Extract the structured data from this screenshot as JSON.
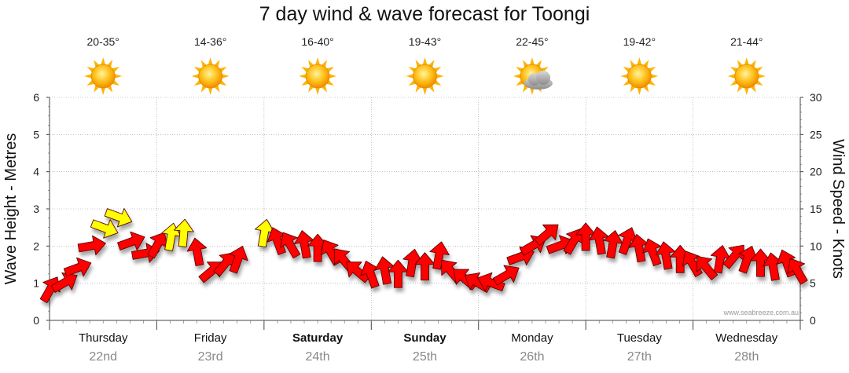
{
  "title": "7 day wind & wave forecast for Toongi",
  "credit": "www.seabreeze.com.au",
  "colors": {
    "wind": "#ff0000",
    "wind_light": "#ffff00",
    "sun": "#ffb300",
    "cloud": "#a8a8a8",
    "grid": "#999999"
  },
  "days": [
    {
      "name": "Thursday",
      "date": "22nd",
      "temp": "20-35°",
      "icon": "sun-icon",
      "bold": false
    },
    {
      "name": "Friday",
      "date": "23rd",
      "temp": "14-36°",
      "icon": "sun-icon",
      "bold": false
    },
    {
      "name": "Saturday",
      "date": "24th",
      "temp": "16-40°",
      "icon": "sun-icon",
      "bold": true
    },
    {
      "name": "Sunday",
      "date": "25th",
      "temp": "19-43°",
      "icon": "sun-icon",
      "bold": true
    },
    {
      "name": "Monday",
      "date": "26th",
      "temp": "22-45°",
      "icon": "sun-cloud-icon",
      "bold": false
    },
    {
      "name": "Tuesday",
      "date": "27th",
      "temp": "19-42°",
      "icon": "sun-icon",
      "bold": false
    },
    {
      "name": "Wednesday",
      "date": "28th",
      "temp": "21-44°",
      "icon": "sun-icon",
      "bold": false
    }
  ],
  "chart_data": {
    "type": "scatter",
    "title": "7 day wind & wave forecast for Toongi",
    "left_axis": {
      "label": "Wave Height - Metres",
      "range": [
        0,
        6
      ],
      "ticks": [
        "0",
        "1",
        "2",
        "3",
        "4",
        "5",
        "6"
      ]
    },
    "right_axis": {
      "label": "Wind Speed - Knots",
      "range": [
        0,
        30
      ],
      "ticks": [
        "0",
        "5",
        "10",
        "15",
        "20",
        "25",
        "30"
      ]
    },
    "x_categories": [
      "Thursday 22nd",
      "Friday 23rd",
      "Saturday 24th",
      "Sunday 25th",
      "Monday 26th",
      "Tuesday 27th",
      "Wednesday 28th"
    ],
    "grid": true,
    "series": [
      {
        "marker": "wind arrow",
        "points": [
          {
            "t": 0.0,
            "knots": 4.0,
            "dir": 120,
            "light": false
          },
          {
            "t": 0.13,
            "knots": 5.0,
            "dir": 150,
            "light": false
          },
          {
            "t": 0.25,
            "knots": 7.0,
            "dir": 160,
            "light": false
          },
          {
            "t": 0.38,
            "knots": 10.0,
            "dir": 170,
            "light": false
          },
          {
            "t": 0.5,
            "knots": 12.5,
            "dir": 200,
            "light": true
          },
          {
            "t": 0.63,
            "knots": 14.0,
            "dir": 200,
            "light": true
          },
          {
            "t": 0.75,
            "knots": 10.5,
            "dir": 160,
            "light": false
          },
          {
            "t": 0.88,
            "knots": 9.0,
            "dir": 170,
            "light": false
          },
          {
            "t": 1.0,
            "knots": 10.0,
            "dir": 120,
            "light": false
          },
          {
            "t": 1.13,
            "knots": 11.0,
            "dir": 100,
            "light": true
          },
          {
            "t": 1.25,
            "knots": 11.5,
            "dir": 95,
            "light": true
          },
          {
            "t": 1.38,
            "knots": 9.0,
            "dir": 80,
            "light": false
          },
          {
            "t": 1.5,
            "knots": 6.5,
            "dir": 140,
            "light": false
          },
          {
            "t": 1.63,
            "knots": 7.5,
            "dir": 130,
            "light": false
          },
          {
            "t": 1.75,
            "knots": 8.0,
            "dir": 110,
            "light": false
          },
          {
            "t": 2.0,
            "knots": 11.5,
            "dir": 100,
            "light": true
          },
          {
            "t": 2.13,
            "knots": 10.5,
            "dir": 70,
            "light": false
          },
          {
            "t": 2.25,
            "knots": 10.0,
            "dir": 60,
            "light": false
          },
          {
            "t": 2.38,
            "knots": 10.0,
            "dir": 80,
            "light": false
          },
          {
            "t": 2.5,
            "knots": 9.5,
            "dir": 90,
            "light": false
          },
          {
            "t": 2.63,
            "knots": 9.0,
            "dir": 60,
            "light": false
          },
          {
            "t": 2.75,
            "knots": 8.0,
            "dir": 50,
            "light": false
          },
          {
            "t": 2.88,
            "knots": 6.5,
            "dir": 40,
            "light": false
          },
          {
            "t": 3.0,
            "knots": 6.0,
            "dir": 70,
            "light": false
          },
          {
            "t": 3.13,
            "knots": 6.5,
            "dir": 80,
            "light": false
          },
          {
            "t": 3.25,
            "knots": 6.0,
            "dir": 90,
            "light": false
          },
          {
            "t": 3.38,
            "knots": 7.5,
            "dir": 100,
            "light": false
          },
          {
            "t": 3.5,
            "knots": 7.0,
            "dir": 90,
            "light": false
          },
          {
            "t": 3.63,
            "knots": 8.5,
            "dir": 100,
            "light": false
          },
          {
            "t": 3.75,
            "knots": 6.5,
            "dir": 50,
            "light": false
          },
          {
            "t": 3.88,
            "knots": 5.5,
            "dir": 40,
            "light": false
          },
          {
            "t": 4.0,
            "knots": 5.0,
            "dir": 30,
            "light": false
          },
          {
            "t": 4.13,
            "knots": 5.0,
            "dir": 20,
            "light": false
          },
          {
            "t": 4.25,
            "knots": 6.0,
            "dir": 150,
            "light": false
          },
          {
            "t": 4.38,
            "knots": 8.5,
            "dir": 160,
            "light": false
          },
          {
            "t": 4.5,
            "knots": 10.0,
            "dir": 150,
            "light": false
          },
          {
            "t": 4.63,
            "knots": 11.5,
            "dir": 140,
            "light": false
          },
          {
            "t": 4.75,
            "knots": 10.0,
            "dir": 160,
            "light": false
          },
          {
            "t": 4.88,
            "knots": 10.5,
            "dir": 120,
            "light": false
          },
          {
            "t": 5.0,
            "knots": 11.0,
            "dir": 90,
            "light": false
          },
          {
            "t": 5.13,
            "knots": 10.5,
            "dir": 80,
            "light": false
          },
          {
            "t": 5.25,
            "knots": 10.0,
            "dir": 100,
            "light": false
          },
          {
            "t": 5.38,
            "knots": 10.5,
            "dir": 110,
            "light": false
          },
          {
            "t": 5.5,
            "knots": 9.5,
            "dir": 80,
            "light": false
          },
          {
            "t": 5.63,
            "knots": 9.0,
            "dir": 70,
            "light": false
          },
          {
            "t": 5.75,
            "knots": 8.5,
            "dir": 80,
            "light": false
          },
          {
            "t": 5.88,
            "knots": 8.0,
            "dir": 90,
            "light": false
          },
          {
            "t": 6.0,
            "knots": 7.5,
            "dir": 60,
            "light": false
          },
          {
            "t": 6.13,
            "knots": 7.0,
            "dir": 50,
            "light": false
          },
          {
            "t": 6.25,
            "knots": 8.0,
            "dir": 100,
            "light": false
          },
          {
            "t": 6.38,
            "knots": 8.5,
            "dir": 130,
            "light": false
          },
          {
            "t": 6.5,
            "knots": 8.0,
            "dir": 110,
            "light": false
          },
          {
            "t": 6.63,
            "knots": 7.5,
            "dir": 90,
            "light": false
          },
          {
            "t": 6.75,
            "knots": 7.0,
            "dir": 80,
            "light": false
          },
          {
            "t": 6.88,
            "knots": 7.5,
            "dir": 70,
            "light": false
          },
          {
            "t": 6.98,
            "knots": 6.5,
            "dir": 60,
            "light": false
          }
        ]
      }
    ]
  }
}
